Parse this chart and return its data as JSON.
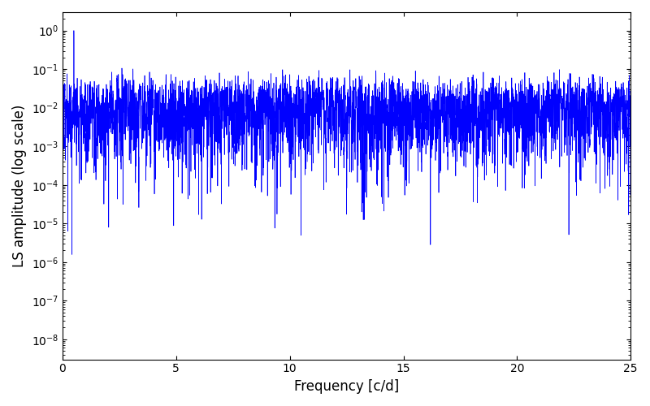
{
  "xlabel": "Frequency [c/d]",
  "ylabel": "LS amplitude (log scale)",
  "xlim": [
    0,
    25
  ],
  "ylim": [
    3e-09,
    3
  ],
  "line_color": "#0000ff",
  "line_width": 0.5,
  "freq_max": 25.0,
  "num_points": 8000,
  "seed": 12345,
  "peak_freq": 0.5,
  "peak_amplitude": 1.0,
  "background_color": "#ffffff",
  "figsize": [
    8.0,
    5.0
  ],
  "dpi": 100
}
